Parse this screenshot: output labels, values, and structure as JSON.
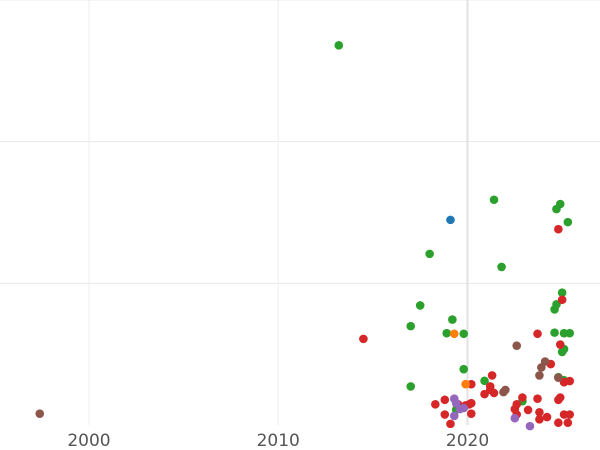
{
  "chart_data": {
    "type": "scatter",
    "title": "",
    "xlabel": "",
    "ylabel": "",
    "xlim": [
      1995.3,
      2027.0
    ],
    "ylim": [
      0,
      150
    ],
    "x_ticks": [
      2000,
      2010,
      2020
    ],
    "x_tick_labels": [
      "2000",
      "2010",
      "2020"
    ],
    "y_gridlines": [
      50,
      100,
      150
    ],
    "grid": true,
    "legend": "none",
    "colors": {
      "green": "#2ca02c",
      "red": "#d62728",
      "brown": "#8c564b",
      "purple": "#9467bd",
      "orange": "#ff7f0e",
      "blue": "#1f77b4"
    },
    "series": [
      {
        "name": "green",
        "color": "#2ca02c",
        "points": [
          [
            2013.2,
            134.0
          ],
          [
            2021.4,
            79.5
          ],
          [
            2024.9,
            78.0
          ],
          [
            2024.7,
            76.2
          ],
          [
            2025.3,
            71.6
          ],
          [
            2018.0,
            60.4
          ],
          [
            2021.8,
            55.8
          ],
          [
            2025.0,
            46.7
          ],
          [
            2024.7,
            42.6
          ],
          [
            2017.5,
            42.2
          ],
          [
            2024.6,
            40.8
          ],
          [
            2019.2,
            37.2
          ],
          [
            2017.0,
            34.9
          ],
          [
            2018.9,
            32.4
          ],
          [
            2019.8,
            32.2
          ],
          [
            2024.6,
            32.6
          ],
          [
            2025.1,
            32.4
          ],
          [
            2025.4,
            32.4
          ],
          [
            2025.1,
            26.8
          ],
          [
            2025.0,
            25.8
          ],
          [
            2019.8,
            19.7
          ],
          [
            2024.8,
            16.9
          ],
          [
            2025.1,
            15.8
          ],
          [
            2020.9,
            15.6
          ],
          [
            2017.0,
            13.6
          ],
          [
            2022.9,
            8.4
          ],
          [
            2019.4,
            5.4
          ]
        ]
      },
      {
        "name": "red",
        "color": "#d62728",
        "points": [
          [
            2024.8,
            69.1
          ],
          [
            2025.0,
            44.2
          ],
          [
            2014.5,
            30.4
          ],
          [
            2023.7,
            32.2
          ],
          [
            2024.9,
            28.4
          ],
          [
            2024.4,
            21.5
          ],
          [
            2021.3,
            17.5
          ],
          [
            2025.4,
            15.5
          ],
          [
            2025.1,
            15.1
          ],
          [
            2020.2,
            14.4
          ],
          [
            2021.2,
            13.6
          ],
          [
            2021.2,
            12.4
          ],
          [
            2021.4,
            11.3
          ],
          [
            2020.9,
            10.9
          ],
          [
            2022.9,
            9.7
          ],
          [
            2024.9,
            9.7
          ],
          [
            2023.7,
            9.3
          ],
          [
            2024.8,
            8.9
          ],
          [
            2018.8,
            8.9
          ],
          [
            2020.2,
            7.7
          ],
          [
            2018.3,
            7.3
          ],
          [
            2019.5,
            7.3
          ],
          [
            2020.1,
            7.3
          ],
          [
            2022.6,
            7.3
          ],
          [
            2019.9,
            6.9
          ],
          [
            2022.5,
            5.6
          ],
          [
            2023.2,
            5.3
          ],
          [
            2023.8,
            4.5
          ],
          [
            2018.8,
            3.7
          ],
          [
            2020.2,
            4.0
          ],
          [
            2022.6,
            3.7
          ],
          [
            2025.1,
            3.7
          ],
          [
            2025.4,
            3.7
          ],
          [
            2024.2,
            2.8
          ],
          [
            2023.8,
            2.0
          ],
          [
            2025.3,
            0.8
          ],
          [
            2024.8,
            0.8
          ],
          [
            2019.1,
            0.4
          ]
        ]
      },
      {
        "name": "brown",
        "color": "#8c564b",
        "points": [
          [
            1997.4,
            4.0
          ],
          [
            2022.6,
            28.0
          ],
          [
            2024.1,
            22.4
          ],
          [
            2023.9,
            20.3
          ],
          [
            2023.8,
            17.5
          ],
          [
            2024.8,
            16.7
          ],
          [
            2022.0,
            12.4
          ],
          [
            2021.9,
            11.6
          ]
        ]
      },
      {
        "name": "purple",
        "color": "#9467bd",
        "points": [
          [
            2019.3,
            9.3
          ],
          [
            2019.4,
            7.7
          ],
          [
            2019.8,
            6.0
          ],
          [
            2019.6,
            5.6
          ],
          [
            2019.3,
            3.2
          ],
          [
            2022.5,
            2.4
          ],
          [
            2023.3,
            -0.4
          ]
        ]
      },
      {
        "name": "orange",
        "color": "#ff7f0e",
        "points": [
          [
            2019.3,
            32.2
          ],
          [
            2019.9,
            14.4
          ]
        ]
      },
      {
        "name": "blue",
        "color": "#1f77b4",
        "points": [
          [
            2019.1,
            72.4
          ]
        ]
      }
    ]
  }
}
